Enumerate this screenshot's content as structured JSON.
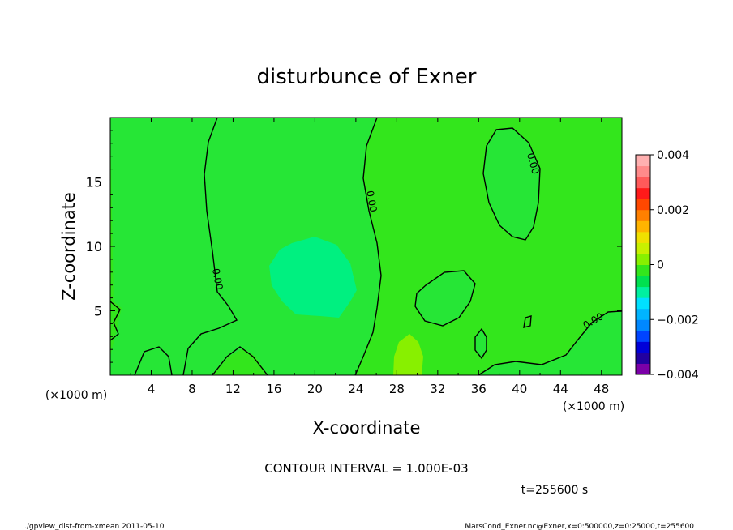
{
  "chart_data": {
    "type": "heatmap",
    "title": "disturbunce of Exner",
    "xlabel": "X-coordinate",
    "ylabel": "Z-coordinate",
    "x_unit": "(×1000 m)",
    "z_unit": "(×1000 m)",
    "xlim": [
      0,
      50
    ],
    "ylim": [
      0,
      20
    ],
    "x_ticks": [
      4,
      8,
      12,
      16,
      20,
      24,
      28,
      32,
      36,
      40,
      44,
      48
    ],
    "y_ticks": [
      5,
      10,
      15
    ],
    "grid": false,
    "contour_interval_text": "CONTOUR INTERVAL = 1.000E-03",
    "contour_label": "0.00",
    "colorbar": {
      "range": [
        -0.004,
        0.004
      ],
      "tick_labels": [
        "0.004",
        "0.002",
        "0",
        "−0.002",
        "−0.004"
      ],
      "tick_values": [
        0.004,
        0.002,
        0,
        -0.002,
        -0.004
      ],
      "levels": [
        {
          "color": "#7b00a8"
        },
        {
          "color": "#2200a0"
        },
        {
          "color": "#0000d8"
        },
        {
          "color": "#0044ff"
        },
        {
          "color": "#0088ff"
        },
        {
          "color": "#00b4ff"
        },
        {
          "color": "#00e0ff"
        },
        {
          "color": "#00f0a0"
        },
        {
          "color": "#00e050"
        },
        {
          "color": "#33e61c"
        },
        {
          "color": "#88f000"
        },
        {
          "color": "#c8f000"
        },
        {
          "color": "#f0e000"
        },
        {
          "color": "#ffb400"
        },
        {
          "color": "#ff8000"
        },
        {
          "color": "#ff4800"
        },
        {
          "color": "#ff1a1a"
        },
        {
          "color": "#ff5a5a"
        },
        {
          "color": "#ff8a8a"
        },
        {
          "color": "#ffb0b0"
        }
      ]
    },
    "background_color": "#33e61c",
    "regions": [
      {
        "color": "#26e636",
        "label": "left negative band"
      },
      {
        "color": "#26e636",
        "label": "central negative band"
      },
      {
        "color": "#00f080",
        "label": "central minimum"
      },
      {
        "color": "#88f000",
        "label": "positive bump near x=29"
      },
      {
        "color": "#26e636",
        "label": "upper right negative cell"
      },
      {
        "color": "#26e636",
        "label": "mid right negative cell"
      }
    ]
  },
  "footer": {
    "time": "t=255600 s",
    "script": "./gpview_dist-from-xmean   2011-05-10",
    "source": "MarsCond_Exner.nc@Exner,x=0:500000,z=0:25000,t=255600"
  }
}
